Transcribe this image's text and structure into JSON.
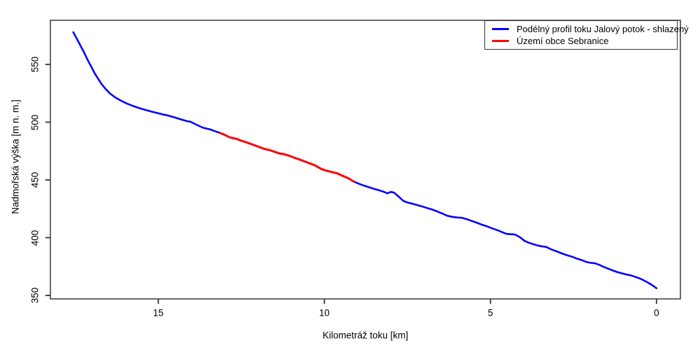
{
  "figure": {
    "background": "#ffffff",
    "box_color": "#5a5a5a",
    "tick_color": "#333333",
    "text_color": "#000000"
  },
  "chart_data": {
    "type": "line",
    "title": "",
    "xlabel": "Kilometráž toku [km]",
    "ylabel": "Nadmořská výška [m n. m.]",
    "x_reversed": true,
    "grid": false,
    "xlim": [
      18.25,
      -0.72
    ],
    "ylim": [
      347.0,
      588.2
    ],
    "x_ticks": [
      "15",
      "10",
      "5",
      "0"
    ],
    "x_tick_values": [
      15,
      10,
      5,
      0
    ],
    "y_ticks": [
      "350",
      "400",
      "450",
      "500",
      "550"
    ],
    "y_tick_values": [
      350,
      400,
      450,
      500,
      550
    ],
    "legend_position": "topright",
    "series": [
      {
        "name": "Podélný profil toku Jalový potok - shlazený",
        "color": "#0000ff",
        "width": 2.6,
        "points": [
          [
            17.56,
            577.9
          ],
          [
            17.45,
            572.0
          ],
          [
            17.34,
            566.0
          ],
          [
            17.23,
            560.0
          ],
          [
            17.13,
            554.0
          ],
          [
            17.02,
            548.0
          ],
          [
            16.92,
            542.5
          ],
          [
            16.81,
            537.5
          ],
          [
            16.71,
            533.0
          ],
          [
            16.58,
            528.5
          ],
          [
            16.46,
            525.0
          ],
          [
            16.3,
            521.5
          ],
          [
            16.12,
            518.5
          ],
          [
            15.94,
            516.0
          ],
          [
            15.76,
            514.0
          ],
          [
            15.58,
            512.2
          ],
          [
            15.4,
            510.7
          ],
          [
            15.22,
            509.3
          ],
          [
            15.05,
            508.0
          ],
          [
            14.88,
            506.8
          ],
          [
            14.71,
            505.8
          ],
          [
            14.5,
            504.0
          ],
          [
            14.28,
            502.1
          ],
          [
            14.15,
            501.0
          ],
          [
            14.03,
            500.3
          ],
          [
            13.86,
            497.9
          ],
          [
            13.65,
            495.2
          ],
          [
            13.44,
            493.7
          ],
          [
            13.28,
            492.0
          ],
          [
            13.13,
            490.5
          ],
          [
            13.0,
            489.0
          ],
          [
            12.87,
            487.1
          ],
          [
            12.78,
            486.3
          ],
          [
            12.65,
            485.6
          ],
          [
            12.5,
            483.9
          ],
          [
            12.38,
            482.9
          ],
          [
            12.2,
            481.0
          ],
          [
            12.05,
            479.5
          ],
          [
            11.9,
            477.8
          ],
          [
            11.75,
            476.4
          ],
          [
            11.65,
            475.9
          ],
          [
            11.5,
            474.4
          ],
          [
            11.35,
            472.9
          ],
          [
            11.22,
            472.3
          ],
          [
            11.05,
            470.8
          ],
          [
            10.9,
            469.2
          ],
          [
            10.75,
            467.7
          ],
          [
            10.6,
            466.1
          ],
          [
            10.45,
            464.4
          ],
          [
            10.33,
            463.2
          ],
          [
            10.22,
            461.6
          ],
          [
            10.1,
            459.6
          ],
          [
            9.98,
            458.3
          ],
          [
            9.86,
            457.5
          ],
          [
            9.74,
            456.6
          ],
          [
            9.62,
            455.8
          ],
          [
            9.5,
            454.2
          ],
          [
            9.38,
            452.7
          ],
          [
            9.26,
            451.2
          ],
          [
            9.15,
            449.2
          ],
          [
            9.1,
            448.4
          ],
          [
            8.95,
            446.6
          ],
          [
            8.8,
            445.0
          ],
          [
            8.65,
            443.6
          ],
          [
            8.5,
            442.2
          ],
          [
            8.35,
            441.0
          ],
          [
            8.2,
            439.6
          ],
          [
            8.1,
            438.4
          ],
          [
            8.0,
            439.6
          ],
          [
            7.9,
            439.0
          ],
          [
            7.78,
            436.0
          ],
          [
            7.62,
            431.8
          ],
          [
            7.5,
            430.5
          ],
          [
            7.35,
            429.4
          ],
          [
            7.2,
            428.2
          ],
          [
            7.05,
            427.0
          ],
          [
            6.9,
            425.6
          ],
          [
            6.75,
            424.3
          ],
          [
            6.6,
            422.7
          ],
          [
            6.45,
            420.9
          ],
          [
            6.3,
            419.0
          ],
          [
            6.15,
            418.0
          ],
          [
            6.0,
            417.5
          ],
          [
            5.85,
            417.2
          ],
          [
            5.7,
            415.9
          ],
          [
            5.55,
            414.4
          ],
          [
            5.4,
            412.8
          ],
          [
            5.25,
            411.2
          ],
          [
            5.1,
            409.8
          ],
          [
            4.95,
            408.1
          ],
          [
            4.8,
            406.6
          ],
          [
            4.65,
            404.8
          ],
          [
            4.52,
            403.3
          ],
          [
            4.4,
            403.0
          ],
          [
            4.27,
            402.8
          ],
          [
            4.12,
            400.6
          ],
          [
            3.97,
            397.2
          ],
          [
            3.88,
            396.0
          ],
          [
            3.75,
            394.7
          ],
          [
            3.6,
            393.4
          ],
          [
            3.47,
            392.6
          ],
          [
            3.33,
            392.0
          ],
          [
            3.17,
            389.9
          ],
          [
            3.0,
            388.1
          ],
          [
            2.85,
            386.4
          ],
          [
            2.7,
            384.9
          ],
          [
            2.55,
            383.6
          ],
          [
            2.4,
            381.9
          ],
          [
            2.25,
            380.6
          ],
          [
            2.1,
            378.9
          ],
          [
            1.98,
            378.2
          ],
          [
            1.85,
            377.8
          ],
          [
            1.72,
            376.5
          ],
          [
            1.6,
            374.8
          ],
          [
            1.47,
            373.3
          ],
          [
            1.33,
            371.8
          ],
          [
            1.2,
            370.4
          ],
          [
            1.05,
            369.2
          ],
          [
            0.9,
            368.1
          ],
          [
            0.78,
            367.4
          ],
          [
            0.65,
            366.2
          ],
          [
            0.52,
            364.9
          ],
          [
            0.4,
            363.3
          ],
          [
            0.28,
            361.5
          ],
          [
            0.17,
            359.6
          ],
          [
            0.08,
            357.9
          ],
          [
            0.0,
            356.3
          ]
        ]
      },
      {
        "name": "Území obce Sebranice",
        "color": "#ff0000",
        "width": 3,
        "points": [
          [
            13.13,
            490.5
          ],
          [
            13.0,
            489.0
          ],
          [
            12.87,
            487.1
          ],
          [
            12.78,
            486.3
          ],
          [
            12.65,
            485.6
          ],
          [
            12.5,
            483.9
          ],
          [
            12.38,
            482.9
          ],
          [
            12.2,
            481.0
          ],
          [
            12.05,
            479.5
          ],
          [
            11.9,
            477.8
          ],
          [
            11.75,
            476.4
          ],
          [
            11.65,
            475.9
          ],
          [
            11.5,
            474.4
          ],
          [
            11.35,
            472.9
          ],
          [
            11.22,
            472.3
          ],
          [
            11.05,
            470.8
          ],
          [
            10.9,
            469.2
          ],
          [
            10.75,
            467.7
          ],
          [
            10.6,
            466.1
          ],
          [
            10.45,
            464.4
          ],
          [
            10.33,
            463.2
          ],
          [
            10.22,
            461.6
          ],
          [
            10.1,
            459.6
          ],
          [
            9.98,
            458.3
          ],
          [
            9.86,
            457.5
          ],
          [
            9.74,
            456.6
          ],
          [
            9.62,
            455.8
          ],
          [
            9.5,
            454.2
          ],
          [
            9.38,
            452.7
          ],
          [
            9.26,
            451.2
          ],
          [
            9.15,
            449.2
          ],
          [
            9.1,
            448.4
          ]
        ]
      }
    ]
  }
}
